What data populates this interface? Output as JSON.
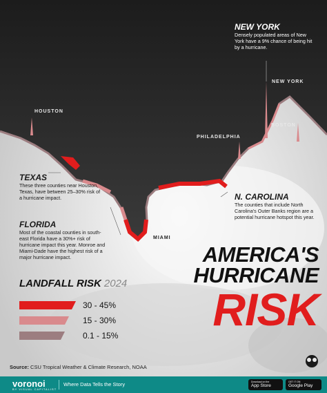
{
  "colors": {
    "high": "#e11d1d",
    "mid": "#d98a8d",
    "low": "#9c7d80",
    "land": "#2a2a2a",
    "ocean": "#ebebeb",
    "footer": "#0e8a87"
  },
  "cities": {
    "houston": "HOUSTON",
    "new_york": "NEW YORK",
    "boston": "BOSTON",
    "philadelphia": "PHILADELPHIA",
    "miami": "MIAMI"
  },
  "annotations": {
    "new_york": {
      "title": "NEW YORK",
      "body": "Densely populated areas of New York have a 9% chance of being hit by a hurricane."
    },
    "texas": {
      "title": "TEXAS",
      "body": "These three counties near Houston, Texas, have between 25–30% risk of a hurricane impact."
    },
    "n_carolina": {
      "title": "N. CAROLINA",
      "body": "The counties that include North Carolina's Outer Banks region are a potential hurricane hotspot this year."
    },
    "florida": {
      "title": "FLORIDA",
      "body": "Most of the coastal counties in south-east Florida have a 30%+ risk of hurricane impact this year. Monroe and Miami-Dade have the highest risk of a major hurricane impact."
    }
  },
  "headline": {
    "line1": "AMERICA'S",
    "line2": "HURRICANE",
    "line3": "RISK"
  },
  "legend": {
    "title": "LANDFALL RISK",
    "year": "2024",
    "items": [
      {
        "label": "30 - 45%",
        "color": "#e11d1d"
      },
      {
        "label": "15 - 30%",
        "color": "#d98a8d"
      },
      {
        "label": "0.1 - 15%",
        "color": "#9c7d80"
      }
    ]
  },
  "source": {
    "prefix": "Source:",
    "text": "CSU Tropical Weather & Climate Research, NOAA"
  },
  "footer": {
    "brand": "voronoi",
    "brand_sub": "BY VISUAL CAPITALIST",
    "tagline": "Where Data Tells the Story",
    "app_store_small": "Download on the",
    "app_store": "App Store",
    "google_play_small": "GET IT ON",
    "google_play": "Google Play"
  }
}
